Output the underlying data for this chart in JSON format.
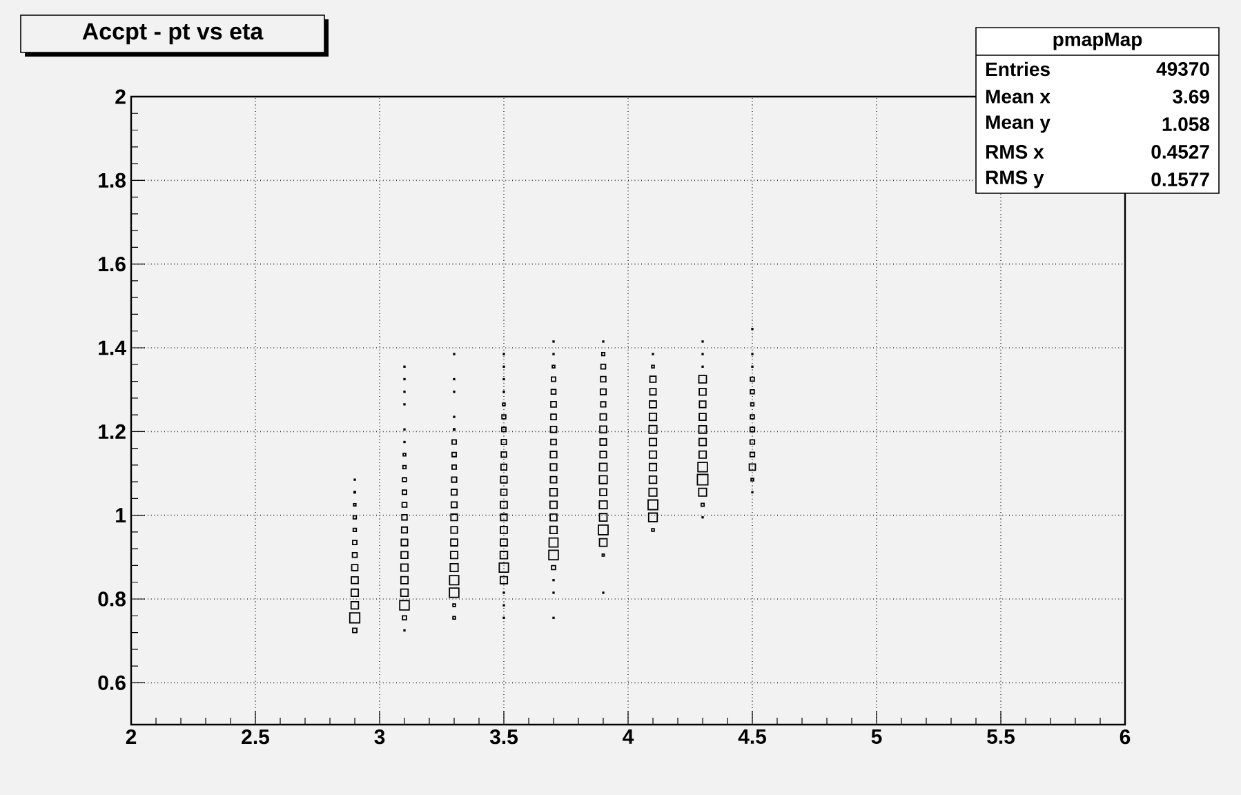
{
  "chart_data": {
    "type": "bubble",
    "title": "Accpt - pt vs eta",
    "annotations": [
      "pmapMap",
      "Entries",
      "49370",
      "Mean x",
      "3.69",
      "Mean y",
      "1.058",
      "RMS x",
      "0.4527",
      "RMS y",
      "0.1577"
    ],
    "xlim": [
      2,
      6
    ],
    "ylim": [
      0.5,
      2
    ],
    "xticks": [
      2,
      2.5,
      3,
      3.5,
      4,
      4.5,
      5,
      5.5,
      6
    ],
    "yticks": [
      0.6,
      0.8,
      1,
      1.2,
      1.4,
      1.6,
      1.8,
      2
    ],
    "grid": true,
    "marker": "square",
    "series": [
      {
        "color": "#000000",
        "x": [
          2.9,
          2.9,
          2.9,
          2.9,
          2.9,
          2.9,
          2.9,
          2.9,
          2.9,
          2.9,
          2.9,
          2.9,
          2.9,
          3.1,
          3.1,
          3.1,
          3.1,
          3.1,
          3.1,
          3.1,
          3.1,
          3.1,
          3.1,
          3.1,
          3.1,
          3.1,
          3.1,
          3.1,
          3.1,
          3.1,
          3.1,
          3.1,
          3.1,
          3.1,
          3.3,
          3.3,
          3.3,
          3.3,
          3.3,
          3.3,
          3.3,
          3.3,
          3.3,
          3.3,
          3.3,
          3.3,
          3.3,
          3.3,
          3.3,
          3.3,
          3.3,
          3.3,
          3.3,
          3.3,
          3.5,
          3.5,
          3.5,
          3.5,
          3.5,
          3.5,
          3.5,
          3.5,
          3.5,
          3.5,
          3.5,
          3.5,
          3.5,
          3.5,
          3.5,
          3.5,
          3.5,
          3.5,
          3.5,
          3.5,
          3.5,
          3.5,
          3.7,
          3.7,
          3.7,
          3.7,
          3.7,
          3.7,
          3.7,
          3.7,
          3.7,
          3.7,
          3.7,
          3.7,
          3.7,
          3.7,
          3.7,
          3.7,
          3.7,
          3.7,
          3.7,
          3.7,
          3.7,
          3.7,
          3.9,
          3.9,
          3.9,
          3.9,
          3.9,
          3.9,
          3.9,
          3.9,
          3.9,
          3.9,
          3.9,
          3.9,
          3.9,
          3.9,
          3.9,
          3.9,
          3.9,
          3.9,
          3.9,
          4.1,
          4.1,
          4.1,
          4.1,
          4.1,
          4.1,
          4.1,
          4.1,
          4.1,
          4.1,
          4.1,
          4.1,
          4.1,
          4.1,
          4.1,
          4.3,
          4.3,
          4.3,
          4.3,
          4.3,
          4.3,
          4.3,
          4.3,
          4.3,
          4.3,
          4.3,
          4.3,
          4.3,
          4.3,
          4.3,
          4.5,
          4.5,
          4.5,
          4.5,
          4.5,
          4.5,
          4.5,
          4.5,
          4.5,
          4.5,
          4.5,
          4.5,
          4.5
        ],
        "values": [
          0.725,
          0.755,
          0.785,
          0.815,
          0.845,
          0.875,
          0.905,
          0.935,
          0.965,
          0.995,
          1.025,
          1.055,
          1.085,
          0.725,
          0.755,
          0.785,
          0.815,
          0.845,
          0.875,
          0.905,
          0.935,
          0.965,
          0.995,
          1.025,
          1.055,
          1.085,
          1.115,
          1.145,
          1.175,
          1.205,
          1.265,
          1.295,
          1.325,
          1.355,
          0.755,
          0.785,
          0.815,
          0.845,
          0.875,
          0.905,
          0.935,
          0.965,
          0.995,
          1.025,
          1.055,
          1.085,
          1.115,
          1.145,
          1.175,
          1.205,
          1.235,
          1.295,
          1.325,
          1.385,
          0.755,
          0.785,
          0.815,
          0.845,
          0.875,
          0.905,
          0.935,
          0.965,
          0.995,
          1.025,
          1.055,
          1.085,
          1.115,
          1.145,
          1.175,
          1.205,
          1.235,
          1.265,
          1.295,
          1.325,
          1.355,
          1.385,
          0.755,
          0.815,
          0.845,
          0.875,
          0.905,
          0.935,
          0.965,
          0.995,
          1.025,
          1.055,
          1.085,
          1.115,
          1.145,
          1.175,
          1.205,
          1.235,
          1.265,
          1.295,
          1.325,
          1.355,
          1.385,
          1.415,
          0.815,
          0.905,
          0.935,
          0.965,
          0.995,
          1.025,
          1.055,
          1.085,
          1.115,
          1.145,
          1.175,
          1.205,
          1.235,
          1.265,
          1.295,
          1.325,
          1.355,
          1.385,
          1.415,
          0.965,
          0.995,
          1.025,
          1.055,
          1.085,
          1.115,
          1.145,
          1.175,
          1.205,
          1.235,
          1.265,
          1.295,
          1.325,
          1.355,
          1.385,
          0.995,
          1.025,
          1.055,
          1.085,
          1.115,
          1.145,
          1.175,
          1.205,
          1.235,
          1.265,
          1.295,
          1.325,
          1.355,
          1.385,
          1.415,
          1.055,
          1.085,
          1.115,
          1.145,
          1.175,
          1.205,
          1.235,
          1.265,
          1.295,
          1.325,
          1.355,
          1.385,
          1.445
        ],
        "sizes": [
          0.16,
          0.9,
          0.49,
          0.46,
          0.42,
          0.34,
          0.2,
          0.16,
          0.09,
          0.09,
          0.05,
          0.02,
          0.01,
          0.01,
          0.14,
          0.81,
          0.49,
          0.46,
          0.46,
          0.42,
          0.38,
          0.3,
          0.25,
          0.2,
          0.16,
          0.14,
          0.09,
          0.06,
          0.01,
          0.01,
          0.01,
          0.01,
          0.01,
          0.01,
          0.06,
          0.06,
          0.81,
          0.77,
          0.56,
          0.46,
          0.42,
          0.38,
          0.38,
          0.3,
          0.3,
          0.23,
          0.16,
          0.16,
          0.16,
          0.02,
          0.01,
          0.01,
          0.01,
          0.01,
          0.01,
          0.01,
          0.01,
          0.46,
          0.77,
          0.49,
          0.42,
          0.42,
          0.38,
          0.42,
          0.34,
          0.38,
          0.3,
          0.25,
          0.23,
          0.16,
          0.14,
          0.06,
          0.01,
          0.01,
          0.01,
          0.01,
          0.01,
          0.01,
          0.01,
          0.14,
          0.81,
          0.72,
          0.46,
          0.42,
          0.46,
          0.49,
          0.36,
          0.38,
          0.38,
          0.27,
          0.34,
          0.27,
          0.27,
          0.2,
          0.16,
          0.06,
          0.01,
          0.01,
          0.01,
          0.04,
          0.52,
          0.85,
          0.52,
          0.56,
          0.42,
          0.56,
          0.52,
          0.38,
          0.38,
          0.42,
          0.36,
          0.23,
          0.3,
          0.25,
          0.2,
          0.08,
          0.01,
          0.06,
          0.67,
          0.85,
          0.56,
          0.49,
          0.46,
          0.46,
          0.46,
          0.56,
          0.46,
          0.42,
          0.36,
          0.34,
          0.06,
          0.01,
          0.01,
          0.08,
          0.56,
          1,
          0.81,
          0.46,
          0.46,
          0.52,
          0.42,
          0.38,
          0.42,
          0.52,
          0.01,
          0.01,
          0.01,
          0.01,
          0.06,
          0.34,
          0.18,
          0.18,
          0.18,
          0.14,
          0.09,
          0.14,
          0.14,
          0.01,
          0.01,
          0.01
        ]
      }
    ]
  }
}
